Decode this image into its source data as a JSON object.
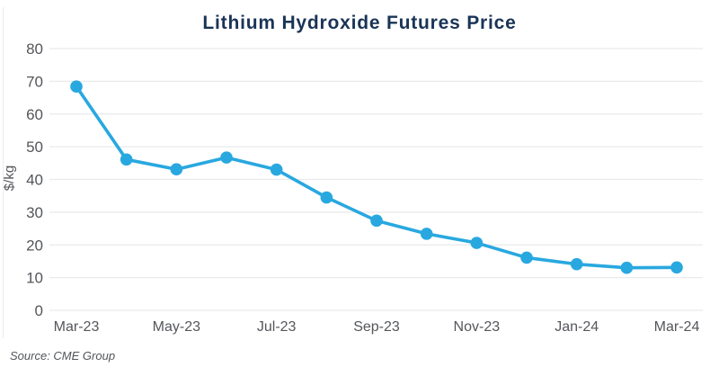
{
  "chart": {
    "title": "Lithium Hydroxide Futures Price",
    "source_note": "Source: CME Group"
  },
  "chart_data": {
    "type": "line",
    "title": "Lithium Hydroxide Futures Price",
    "xlabel": "",
    "ylabel": "$/kg",
    "source": "Source: CME Group",
    "x": [
      "Mar-23",
      "Apr-23",
      "May-23",
      "Jun-23",
      "Jul-23",
      "Aug-23",
      "Sep-23",
      "Oct-23",
      "Nov-23",
      "Dec-23",
      "Jan-24",
      "Feb-24",
      "Mar-24"
    ],
    "values": [
      68.4,
      46.1,
      43.1,
      46.7,
      43.0,
      34.5,
      27.4,
      23.4,
      20.6,
      16.1,
      14.1,
      13.0,
      13.1
    ],
    "x_tick_labels": [
      "Mar-23",
      "May-23",
      "Jul-23",
      "Sep-23",
      "Nov-23",
      "Jan-24",
      "Mar-24"
    ],
    "x_tick_every": 2,
    "y_ticks": [
      0,
      10,
      20,
      30,
      40,
      50,
      60,
      70,
      80
    ],
    "ylim": [
      0,
      80
    ],
    "grid": true,
    "legend": false,
    "marker": "circle",
    "colors": {
      "line": "#29A8E0",
      "marker": "#29A8E0",
      "title": "#1A3457",
      "tick_label": "#54565A",
      "gridline": "#E9EAEC",
      "background": "#FFFFFF"
    }
  }
}
